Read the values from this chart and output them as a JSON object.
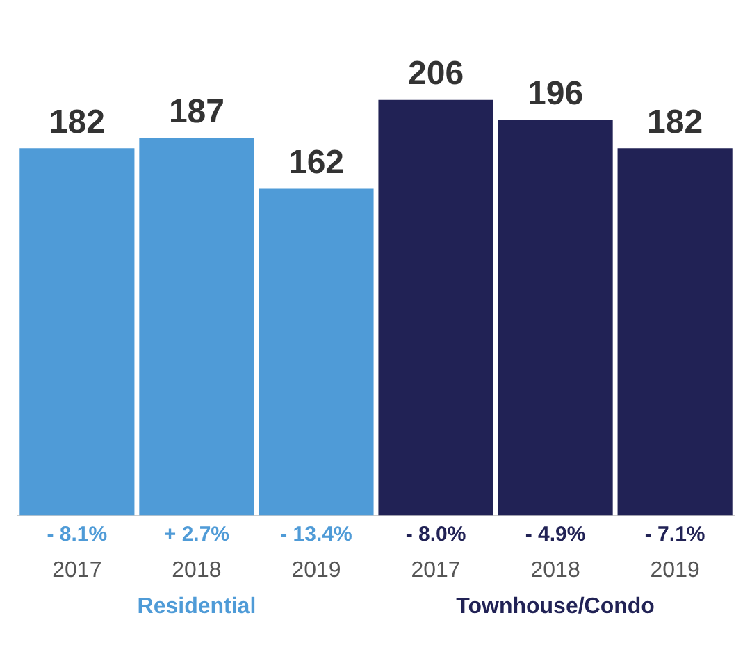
{
  "chart_data": {
    "type": "bar",
    "stacked": true,
    "categories": [
      "2017",
      "2018",
      "2019",
      "2017",
      "2018",
      "2019"
    ],
    "series": [
      {
        "name": "Residential",
        "color": "#4f9bd7",
        "values": [
          182,
          187,
          162,
          null,
          null,
          null
        ]
      },
      {
        "name": "Townhouse/Condo",
        "color": "#212255",
        "values": [
          null,
          null,
          null,
          206,
          196,
          182
        ]
      }
    ],
    "data_labels": true,
    "grid": false,
    "legend": false,
    "annotations": [
      "- 8.1%",
      "+ 2.7%",
      "- 13.4%",
      "- 8.0%",
      "- 4.9%",
      "- 7.1%"
    ]
  }
}
